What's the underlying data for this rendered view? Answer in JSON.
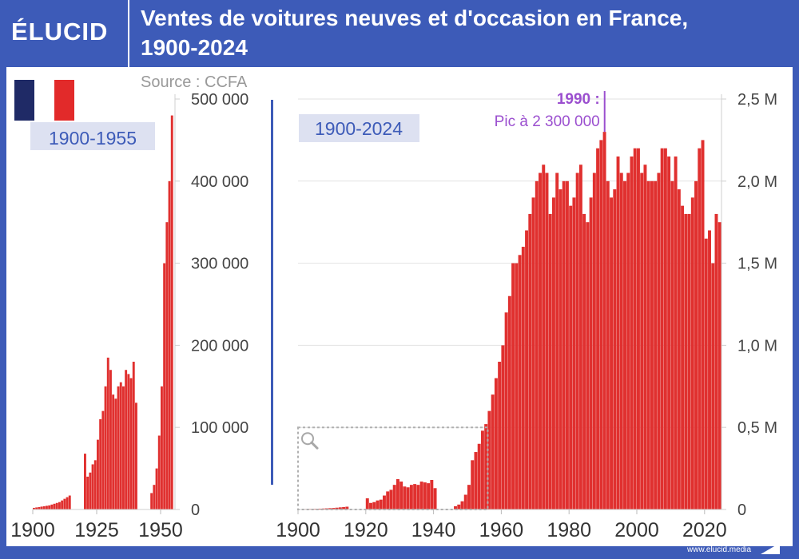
{
  "header": {
    "logo": "ÉLUCID",
    "title_line1": "Ventes de voitures neuves et d'occasion en France,",
    "title_line2": "1900-2024",
    "source": "Source : CCFA",
    "footer": "www.elucid.media"
  },
  "colors": {
    "brand": "#3d5bb8",
    "bar": "#e0302f",
    "annotation": "#9b4fcf",
    "flag_blue": "#1f2a66",
    "flag_red": "#e22a2a",
    "badge_bg": "#dde1f1"
  },
  "chart_data": [
    {
      "type": "bar",
      "title": "1900-1955",
      "x_ticks": [
        "1900",
        "1925",
        "1950"
      ],
      "y_ticks": [
        "0",
        "100 000",
        "200 000",
        "300 000",
        "400 000",
        "500 000"
      ],
      "ylim": [
        0,
        500000
      ],
      "xlim": [
        1900,
        1955
      ],
      "x": [
        1900,
        1901,
        1902,
        1903,
        1904,
        1905,
        1906,
        1907,
        1908,
        1909,
        1910,
        1911,
        1912,
        1913,
        1914,
        1915,
        1916,
        1917,
        1918,
        1919,
        1920,
        1921,
        1922,
        1923,
        1924,
        1925,
        1926,
        1927,
        1928,
        1929,
        1930,
        1931,
        1932,
        1933,
        1934,
        1935,
        1936,
        1937,
        1938,
        1939,
        1940,
        1941,
        1942,
        1943,
        1944,
        1945,
        1946,
        1947,
        1948,
        1949,
        1950,
        1951,
        1952,
        1953,
        1954
      ],
      "values": [
        2000,
        2500,
        3000,
        3500,
        4000,
        4500,
        5000,
        6000,
        7000,
        8000,
        9000,
        11000,
        13000,
        15000,
        17000,
        0,
        0,
        0,
        0,
        0,
        68000,
        40000,
        45000,
        55000,
        60000,
        85000,
        110000,
        120000,
        150000,
        185000,
        170000,
        140000,
        135000,
        150000,
        155000,
        150000,
        170000,
        165000,
        160000,
        180000,
        130000,
        0,
        0,
        0,
        0,
        0,
        20000,
        30000,
        50000,
        90000,
        150000,
        300000,
        350000,
        400000,
        480000
      ],
      "grid": false
    },
    {
      "type": "bar",
      "title": "1900-2024",
      "x_ticks": [
        "1900",
        "1920",
        "1940",
        "1960",
        "1980",
        "2000",
        "2020"
      ],
      "y_ticks": [
        "0",
        "0,5 M",
        "1,0 M",
        "1,5 M",
        "2,0 M",
        "2,5 M"
      ],
      "ylim": [
        0,
        2500000
      ],
      "xlim": [
        1900,
        2025
      ],
      "x": [
        1900,
        1901,
        1902,
        1903,
        1904,
        1905,
        1906,
        1907,
        1908,
        1909,
        1910,
        1911,
        1912,
        1913,
        1914,
        1915,
        1916,
        1917,
        1918,
        1919,
        1920,
        1921,
        1922,
        1923,
        1924,
        1925,
        1926,
        1927,
        1928,
        1929,
        1930,
        1931,
        1932,
        1933,
        1934,
        1935,
        1936,
        1937,
        1938,
        1939,
        1940,
        1941,
        1942,
        1943,
        1944,
        1945,
        1946,
        1947,
        1948,
        1949,
        1950,
        1951,
        1952,
        1953,
        1954,
        1955,
        1956,
        1957,
        1958,
        1959,
        1960,
        1961,
        1962,
        1963,
        1964,
        1965,
        1966,
        1967,
        1968,
        1969,
        1970,
        1971,
        1972,
        1973,
        1974,
        1975,
        1976,
        1977,
        1978,
        1979,
        1980,
        1981,
        1982,
        1983,
        1984,
        1985,
        1986,
        1987,
        1988,
        1989,
        1990,
        1991,
        1992,
        1993,
        1994,
        1995,
        1996,
        1997,
        1998,
        1999,
        2000,
        2001,
        2002,
        2003,
        2004,
        2005,
        2006,
        2007,
        2008,
        2009,
        2010,
        2011,
        2012,
        2013,
        2014,
        2015,
        2016,
        2017,
        2018,
        2019,
        2020,
        2021,
        2022,
        2023,
        2024
      ],
      "values": [
        2000,
        2500,
        3000,
        3500,
        4000,
        4500,
        5000,
        6000,
        7000,
        8000,
        9000,
        11000,
        13000,
        15000,
        17000,
        0,
        0,
        0,
        0,
        0,
        68000,
        40000,
        45000,
        55000,
        60000,
        85000,
        110000,
        120000,
        150000,
        185000,
        170000,
        140000,
        135000,
        150000,
        155000,
        150000,
        170000,
        165000,
        160000,
        180000,
        130000,
        0,
        0,
        0,
        0,
        0,
        20000,
        30000,
        50000,
        90000,
        150000,
        300000,
        350000,
        400000,
        480000,
        520000,
        600000,
        700000,
        800000,
        900000,
        1000000,
        1200000,
        1300000,
        1500000,
        1500000,
        1550000,
        1600000,
        1700000,
        1800000,
        1900000,
        2000000,
        2050000,
        2100000,
        2050000,
        1800000,
        1900000,
        2050000,
        1950000,
        2000000,
        2000000,
        1850000,
        1900000,
        2050000,
        2100000,
        1800000,
        1750000,
        1900000,
        2050000,
        2200000,
        2250000,
        2300000,
        2000000,
        1900000,
        1950000,
        2150000,
        2050000,
        2000000,
        2050000,
        2150000,
        2200000,
        2200000,
        2050000,
        2100000,
        2000000,
        2000000,
        2000000,
        2050000,
        2200000,
        2200000,
        2150000,
        2000000,
        2150000,
        1950000,
        1850000,
        1800000,
        1800000,
        1900000,
        2000000,
        2200000,
        2250000,
        1650000,
        1700000,
        1500000,
        1800000,
        1750000
      ],
      "annotation": {
        "line1": "1990 :",
        "line2": "Pic à 2 300 000",
        "year": 1990,
        "value": 2300000
      },
      "grid": true
    }
  ]
}
